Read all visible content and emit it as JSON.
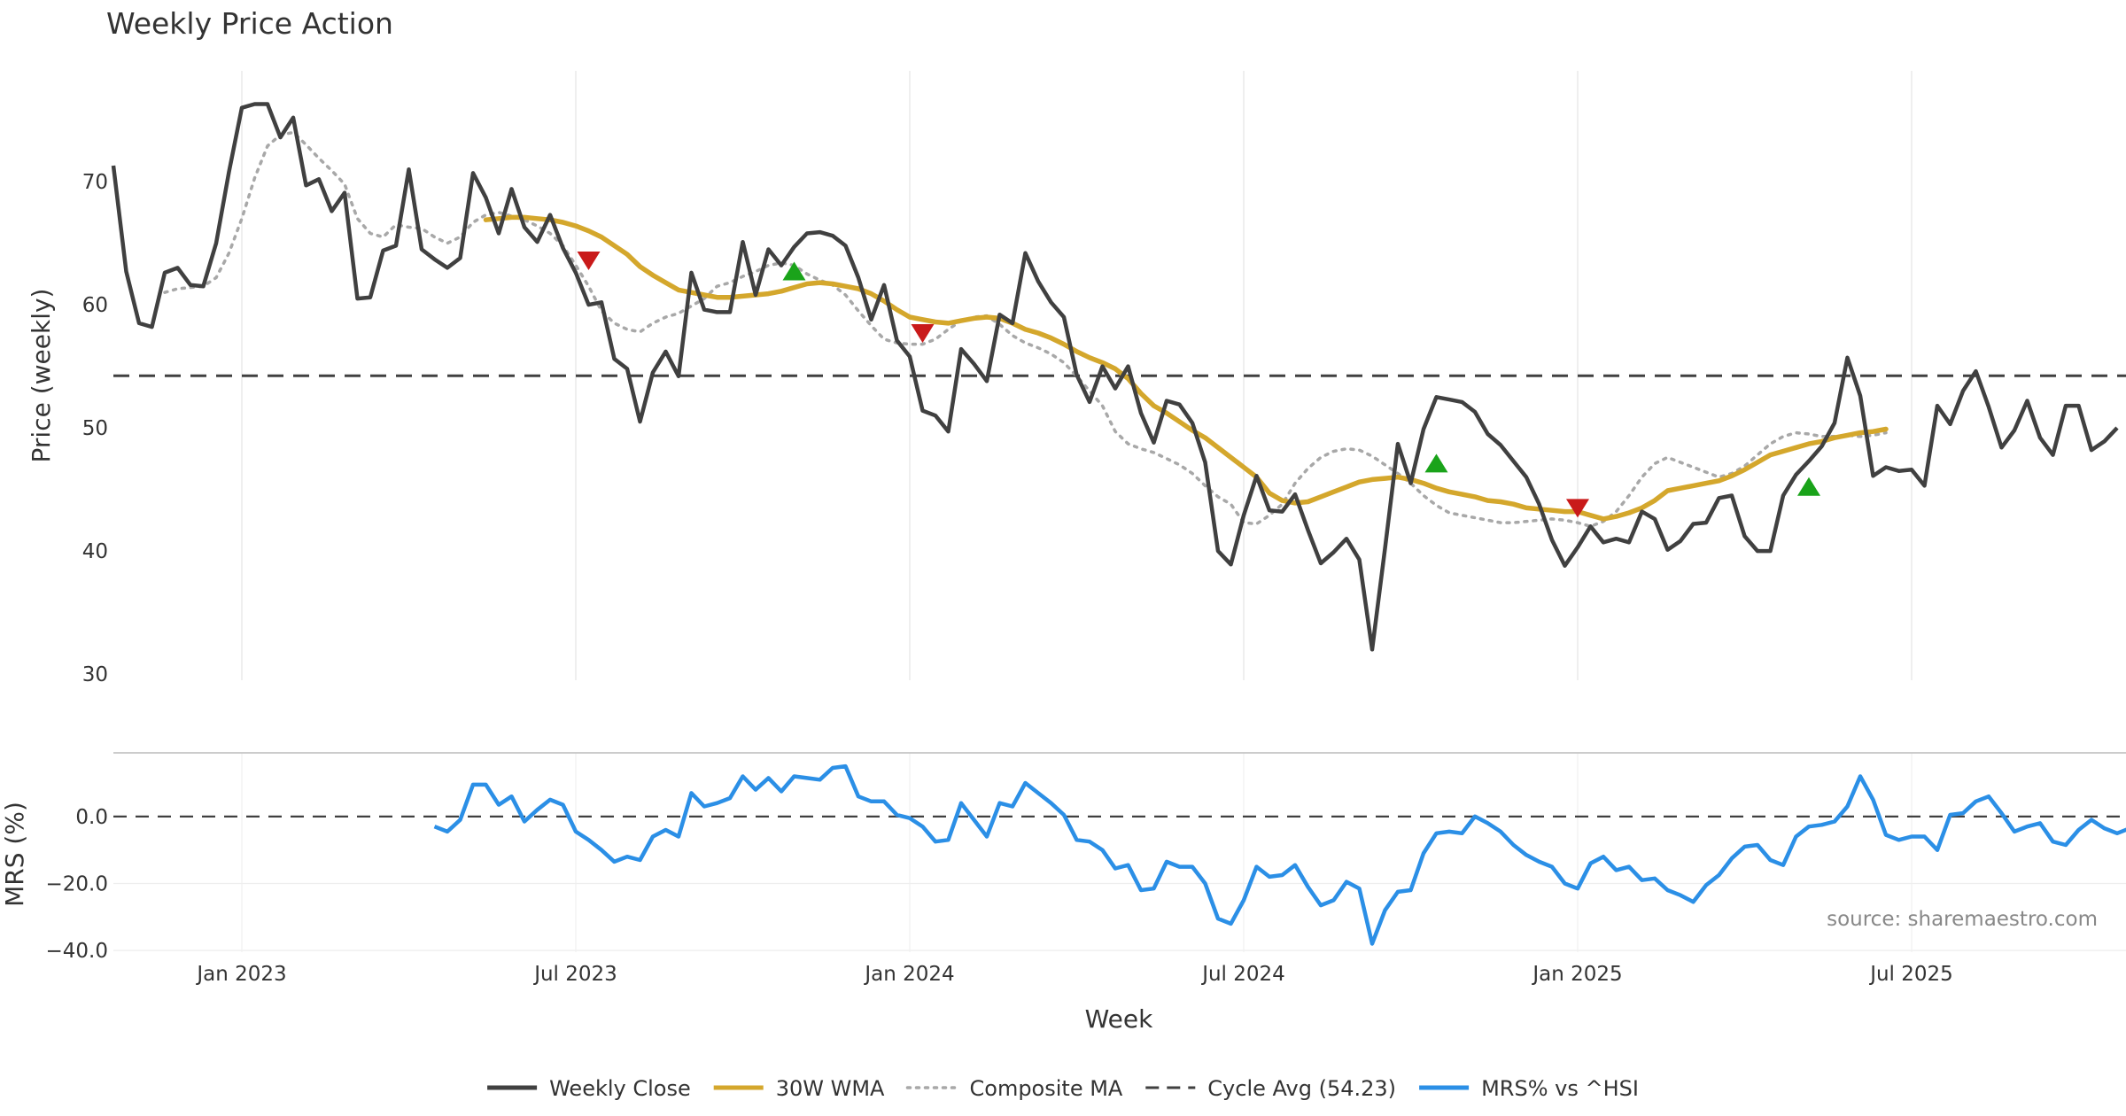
{
  "chart_data": {
    "type": "line",
    "title": "Weekly Price Action",
    "source": "source: sharemaestro.com",
    "xlabel": "Week",
    "x_ticks": [
      "Jan 2023",
      "Jul 2023",
      "Jan 2024",
      "Jul 2024",
      "Jan 2025",
      "Jul 2025"
    ],
    "x_tick_index": [
      10,
      36,
      62,
      88,
      114,
      140
    ],
    "price_panel": {
      "ylabel": "Price (weekly)",
      "ylim": [
        29.5,
        79
      ],
      "y_ticks": [
        30,
        40,
        50,
        60,
        70
      ],
      "cycle_avg": 54.23,
      "weekly_close": [
        71.3,
        62.7,
        58.5,
        58.2,
        62.6,
        63.0,
        61.6,
        61.5,
        65.0,
        70.8,
        76.0,
        76.3,
        76.3,
        73.6,
        75.2,
        69.7,
        70.2,
        67.6,
        69.1,
        60.5,
        60.6,
        64.4,
        64.8,
        71.0,
        64.5,
        63.7,
        63.0,
        63.8,
        70.7,
        68.7,
        65.8,
        69.4,
        66.3,
        65.1,
        67.3,
        64.6,
        62.6,
        60.0,
        60.2,
        55.6,
        54.8,
        50.5,
        54.5,
        56.2,
        54.2,
        62.6,
        59.6,
        59.4,
        59.4,
        65.1,
        60.8,
        64.5,
        63.2,
        64.7,
        65.8,
        65.9,
        65.6,
        64.8,
        62.2,
        58.8,
        61.6,
        57.1,
        55.8,
        51.4,
        51.0,
        49.7,
        56.4,
        55.2,
        53.8,
        59.2,
        58.5,
        64.2,
        61.9,
        60.2,
        59.0,
        54.3,
        52.1,
        55.0,
        53.2,
        55.0,
        51.2,
        48.8,
        52.2,
        51.9,
        50.4,
        47.2,
        40.0,
        38.9,
        42.9,
        46.1,
        43.3,
        43.2,
        44.6,
        41.7,
        39.0,
        39.9,
        41.0,
        39.3,
        32.0,
        40.2,
        48.7,
        45.5,
        49.9,
        52.5,
        52.3,
        52.1,
        51.3,
        49.5,
        48.6,
        47.3,
        46.0,
        43.8,
        40.9,
        38.8,
        40.3,
        42.0,
        40.7,
        41.0,
        40.7,
        43.2,
        42.6,
        40.1,
        40.8,
        42.2,
        42.3,
        44.3,
        44.5,
        41.2,
        40.0,
        40.0,
        44.5,
        46.2,
        47.3,
        48.5,
        50.4,
        55.7,
        52.6,
        46.1,
        46.8,
        46.5,
        46.6,
        45.3,
        51.8,
        50.3,
        53.0,
        54.6,
        51.7,
        48.4,
        49.8,
        52.2,
        49.2,
        47.8,
        51.8,
        51.8,
        48.2,
        48.9,
        50.0
      ],
      "wma_30w": {
        "start_index": 29,
        "values": [
          66.9,
          67.0,
          67.1,
          67.1,
          67.0,
          66.9,
          66.7,
          66.4,
          66.0,
          65.5,
          64.8,
          64.1,
          63.1,
          62.4,
          61.8,
          61.2,
          61.0,
          60.8,
          60.6,
          60.6,
          60.7,
          60.8,
          60.9,
          61.1,
          61.4,
          61.7,
          61.8,
          61.7,
          61.5,
          61.3,
          60.9,
          60.3,
          59.6,
          59.0,
          58.8,
          58.6,
          58.5,
          58.7,
          58.9,
          59.0,
          58.9,
          58.5,
          58.0,
          57.7,
          57.3,
          56.8,
          56.2,
          55.7,
          55.3,
          54.8,
          54.0,
          52.8,
          51.8,
          51.2,
          50.5,
          49.8,
          49.2,
          48.4,
          47.6,
          46.8,
          46.0,
          44.7,
          44.1,
          43.9,
          44.0,
          44.4,
          44.8,
          45.2,
          45.6,
          45.8,
          45.9,
          46.0,
          45.8,
          45.5,
          45.1,
          44.8,
          44.6,
          44.4,
          44.1,
          44.0,
          43.8,
          43.5,
          43.4,
          43.3,
          43.2,
          43.2,
          42.9,
          42.6,
          42.8,
          43.1,
          43.5,
          44.1,
          44.9,
          45.1,
          45.3,
          45.5,
          45.7,
          46.1,
          46.6,
          47.2,
          47.8,
          48.1,
          48.4,
          48.7,
          48.9,
          49.2,
          49.4,
          49.6,
          49.7,
          49.9
        ]
      },
      "composite_ma": {
        "start_index": 4,
        "values": [
          61.0,
          61.3,
          61.4,
          61.5,
          62.2,
          64.2,
          67.0,
          70.3,
          72.9,
          73.8,
          74.0,
          73.0,
          71.9,
          70.9,
          69.8,
          67.0,
          65.8,
          65.5,
          66.5,
          66.3,
          66.2,
          65.5,
          65.0,
          65.5,
          66.7,
          67.3,
          67.5,
          67.2,
          66.9,
          66.4,
          65.8,
          64.8,
          63.2,
          61.5,
          59.5,
          58.5,
          58.0,
          57.8,
          58.5,
          59.0,
          59.3,
          59.9,
          60.5,
          61.5,
          61.8,
          62.3,
          62.7,
          63.2,
          63.4,
          63.2,
          62.5,
          62.0,
          61.6,
          60.8,
          59.5,
          58.3,
          57.2,
          56.9,
          56.8,
          56.8,
          57.2,
          58.0,
          58.7,
          59.0,
          59.1,
          58.4,
          57.5,
          56.9,
          56.5,
          56.0,
          55.3,
          54.2,
          53.0,
          51.8,
          49.7,
          48.7,
          48.3,
          48.0,
          47.5,
          47.0,
          46.3,
          45.3,
          44.4,
          43.8,
          42.3,
          42.2,
          42.9,
          43.8,
          45.5,
          46.7,
          47.6,
          48.1,
          48.3,
          48.2,
          47.7,
          47.0,
          46.3,
          45.5,
          44.5,
          43.7,
          43.1,
          42.9,
          42.7,
          42.5,
          42.3,
          42.3,
          42.4,
          42.5,
          42.6,
          42.5,
          42.3,
          42.0,
          42.4,
          43.2,
          44.5,
          46.0,
          47.1,
          47.6,
          47.2,
          46.8,
          46.4,
          46.0,
          46.3,
          46.9,
          47.8,
          48.7,
          49.3,
          49.6,
          49.5,
          49.3,
          49.3,
          49.4,
          49.3,
          49.4,
          49.6
        ]
      },
      "signals_up": [
        [
          53,
          62.7
        ],
        [
          103,
          47.1
        ],
        [
          132,
          45.2
        ]
      ],
      "signals_down": [
        [
          37,
          63.6
        ],
        [
          63,
          57.7
        ],
        [
          114,
          43.5
        ]
      ]
    },
    "mrs_panel": {
      "ylabel": "MRS (%)",
      "ylim": [
        -40.5,
        19
      ],
      "y_ticks": [
        0.0,
        -20.0,
        -40.0
      ],
      "y_tick_labels": [
        "0.0",
        "−20.0",
        "−40.0"
      ],
      "start_index": 25,
      "values": [
        -3.0,
        -4.5,
        -1.0,
        9.5,
        9.5,
        3.5,
        6.0,
        -1.5,
        2.0,
        5.0,
        3.5,
        -4.5,
        -7.0,
        -10.0,
        -13.5,
        -12.0,
        -13.0,
        -6.0,
        -4.0,
        -6.0,
        7.0,
        3.0,
        4.0,
        5.5,
        12.0,
        8.0,
        11.5,
        7.5,
        12.0,
        11.5,
        11.0,
        14.5,
        15.0,
        6.0,
        4.5,
        4.5,
        0.5,
        -0.5,
        -3.0,
        -7.5,
        -7.0,
        4.0,
        -1.0,
        -6.0,
        4.0,
        3.0,
        10.0,
        7.0,
        4.0,
        0.5,
        -7.0,
        -7.5,
        -10.0,
        -15.5,
        -14.5,
        -22.0,
        -21.5,
        -13.5,
        -15.0,
        -15.0,
        -20.0,
        -30.5,
        -32.0,
        -25.0,
        -15.0,
        -18.0,
        -17.5,
        -14.5,
        -21.0,
        -26.5,
        -25.0,
        -19.5,
        -21.5,
        -38.0,
        -28.0,
        -22.5,
        -22.0,
        -11.0,
        -5.0,
        -4.5,
        -5.0,
        0.0,
        -2.0,
        -4.5,
        -8.5,
        -11.5,
        -13.5,
        -15.0,
        -20.0,
        -21.5,
        -14.0,
        -12.0,
        -16.0,
        -15.0,
        -19.0,
        -18.5,
        -22.0,
        -23.5,
        -25.5,
        -20.5,
        -17.5,
        -12.5,
        -9.0,
        -8.5,
        -13.0,
        -14.5,
        -6.0,
        -3.0,
        -2.5,
        -1.5,
        3.0,
        12.0,
        5.0,
        -5.5,
        -7.0,
        -6.0,
        -6.0,
        -10.0,
        0.5,
        1.0,
        4.5,
        6.0,
        1.0,
        -4.5,
        -3.0,
        -2.0,
        -7.5,
        -8.5,
        -4.0,
        -1.0,
        -3.5,
        -5.0,
        -3.5
      ]
    },
    "legend": [
      {
        "label": "Weekly Close",
        "style": "solid",
        "color": "#404040"
      },
      {
        "label": "30W WMA",
        "style": "solid",
        "color": "#d4a72c"
      },
      {
        "label": "Composite MA",
        "style": "dotted",
        "color": "#a8a8a8"
      },
      {
        "label": "Cycle Avg (54.23)",
        "style": "dashed",
        "color": "#404040"
      },
      {
        "label": "MRS% vs ^HSI",
        "style": "solid",
        "color": "#2b8fe6"
      }
    ],
    "colors": {
      "close": "#404040",
      "wma": "#d4a72c",
      "composite": "#a8a8a8",
      "cycle": "#404040",
      "mrs": "#2b8fe6",
      "up_signal": "#1aa31a",
      "down_signal": "#c91a1a",
      "grid": "#e6e6e6"
    }
  }
}
